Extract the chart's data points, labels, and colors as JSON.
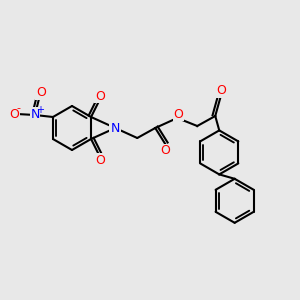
{
  "bg_color": "#e8e8e8",
  "bond_color": "#000000",
  "bond_width": 1.5,
  "atom_colors": {
    "O": "#ff0000",
    "N_nitro": "#0000ff",
    "N_imide": "#0000ff"
  },
  "font_size_atom": 9,
  "font_size_charge": 7
}
